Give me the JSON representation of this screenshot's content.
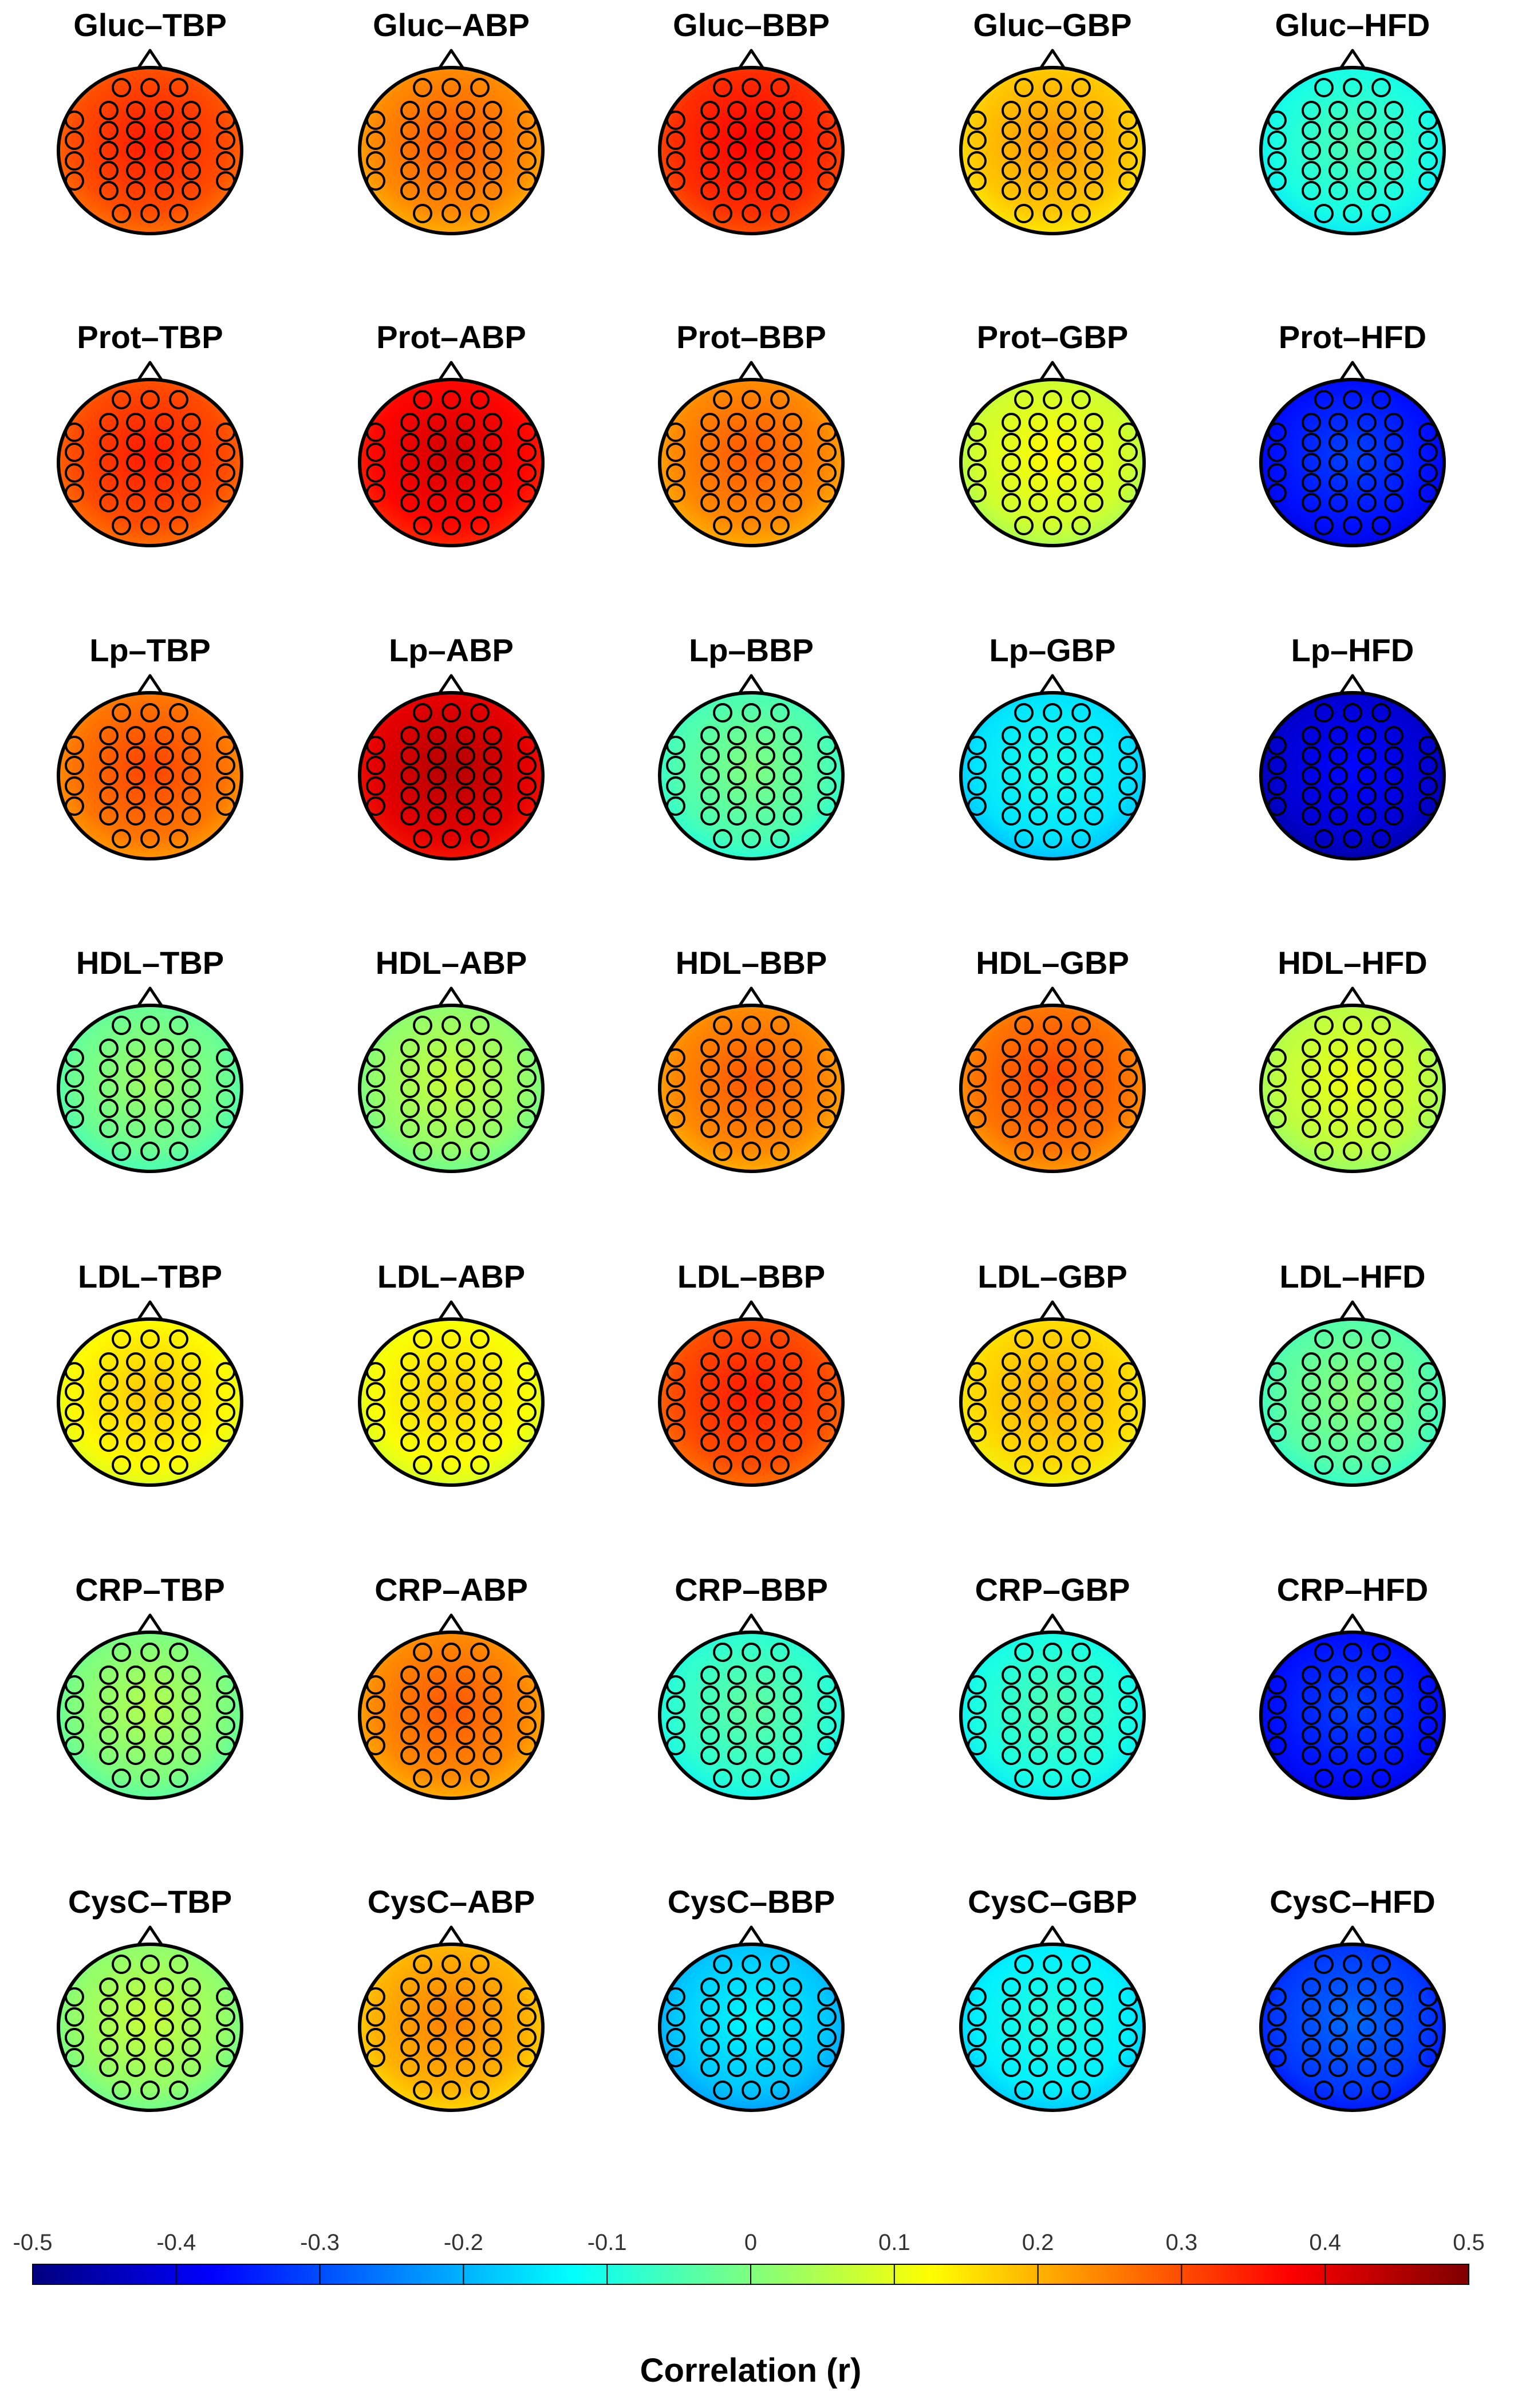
{
  "chart_data": {
    "type": "heatmap",
    "subtype": "eeg-scalp-topography-grid",
    "row_labels": [
      "Gluc",
      "Prot",
      "Lp",
      "HDL",
      "LDL",
      "CRP",
      "CysC"
    ],
    "column_labels": [
      "TBP",
      "ABP",
      "BBP",
      "GBP",
      "HFD"
    ],
    "panels": [
      {
        "title": "Gluc–TBP",
        "r": 0.3
      },
      {
        "title": "Gluc–ABP",
        "r": 0.24
      },
      {
        "title": "Gluc–BBP",
        "r": 0.33
      },
      {
        "title": "Gluc–GBP",
        "r": 0.18
      },
      {
        "title": "Gluc–HFD",
        "r": -0.1
      },
      {
        "title": "Prot–TBP",
        "r": 0.3
      },
      {
        "title": "Prot–ABP",
        "r": 0.37
      },
      {
        "title": "Prot–BBP",
        "r": 0.24
      },
      {
        "title": "Prot–GBP",
        "r": 0.08
      },
      {
        "title": "Prot–HFD",
        "r": -0.36
      },
      {
        "title": "Lp–TBP",
        "r": 0.26
      },
      {
        "title": "Lp–ABP",
        "r": 0.4
      },
      {
        "title": "Lp–BBP",
        "r": -0.05
      },
      {
        "title": "Lp–GBP",
        "r": -0.15
      },
      {
        "title": "Lp–HFD",
        "r": -0.42
      },
      {
        "title": "HDL–TBP",
        "r": -0.02
      },
      {
        "title": "HDL–ABP",
        "r": 0.02
      },
      {
        "title": "HDL–BBP",
        "r": 0.24
      },
      {
        "title": "HDL–GBP",
        "r": 0.26
      },
      {
        "title": "HDL–HFD",
        "r": 0.06
      },
      {
        "title": "LDL–TBP",
        "r": 0.13
      },
      {
        "title": "LDL–ABP",
        "r": 0.12
      },
      {
        "title": "LDL–BBP",
        "r": 0.3
      },
      {
        "title": "LDL–GBP",
        "r": 0.16
      },
      {
        "title": "LDL–HFD",
        "r": -0.04
      },
      {
        "title": "CRP–TBP",
        "r": 0.0
      },
      {
        "title": "CRP–ABP",
        "r": 0.24
      },
      {
        "title": "CRP–BBP",
        "r": -0.08
      },
      {
        "title": "CRP–GBP",
        "r": -0.1
      },
      {
        "title": "CRP–HFD",
        "r": -0.36
      },
      {
        "title": "CysC–TBP",
        "r": 0.02
      },
      {
        "title": "CysC–ABP",
        "r": 0.2
      },
      {
        "title": "CysC–BBP",
        "r": -0.18
      },
      {
        "title": "CysC–GBP",
        "r": -0.14
      },
      {
        "title": "CysC–HFD",
        "r": -0.32
      }
    ],
    "colorbar": {
      "label": "Correlation (r)",
      "range": [
        -0.5,
        0.5
      ],
      "ticks": [
        "-0.5",
        "-0.4",
        "-0.3",
        "-0.2",
        "-0.1",
        "0",
        "0.1",
        "0.2",
        "0.3",
        "0.4",
        "0.5"
      ],
      "colormap": "jet",
      "colormap_colors": [
        "#00007f",
        "#0000ff",
        "#007fff",
        "#00ffff",
        "#7fff7f",
        "#ffff00",
        "#ff7f00",
        "#ff0000",
        "#7f0000"
      ]
    },
    "head_outline_color": "#000000",
    "electrode_marker": "open-circle"
  }
}
